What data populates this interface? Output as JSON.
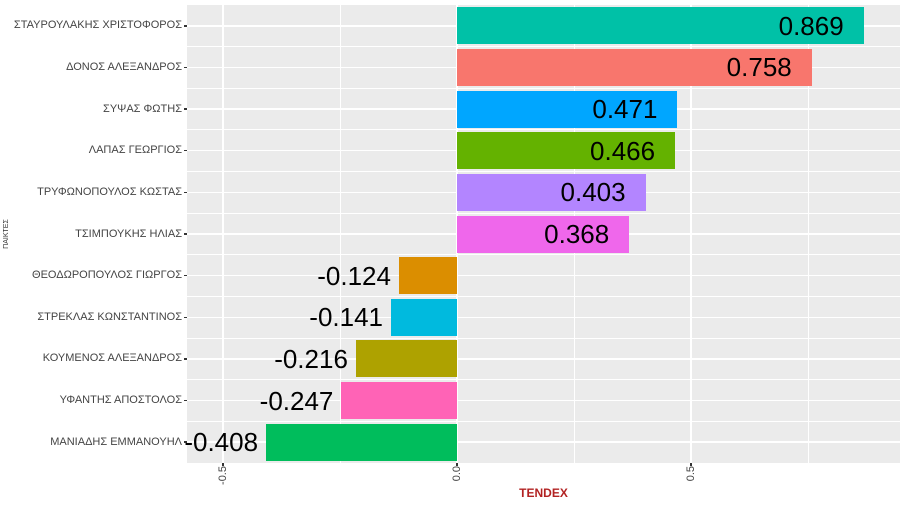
{
  "chart_data": {
    "type": "bar",
    "orientation": "horizontal",
    "title": "",
    "xlabel": "TENDEX",
    "ylabel": "ΠΑΙΚΤΕΣ",
    "legend_position": "none",
    "grid": true,
    "categories": [
      "ΣΤΑΥΡΟΥΛΑΚΗΣ ΧΡΙΣΤΟΦΟΡΟΣ",
      "ΔΟΝΟΣ ΑΛΕΞΑΝΔΡΟΣ",
      "ΣΥΨΑΣ ΦΩΤΗΣ",
      "ΛΑΠΑΣ ΓΕΩΡΓΙΟΣ",
      "ΤΡΥΦΩΝΟΠΟΥΛΟΣ ΚΩΣΤΑΣ",
      "ΤΣΙΜΠΟΥΚΗΣ ΗΛΙΑΣ",
      "ΘΕΟΔΩΡΟΠΟΥΛΟΣ ΓΙΩΡΓΟΣ",
      "ΣΤΡΕΚΛΑΣ ΚΩΝΣΤΑΝΤΙΝΟΣ",
      "ΚΟΥΜΕΝΟΣ ΑΛΕΞΑΝΔΡΟΣ",
      "ΥΦΑΝΤΗΣ ΑΠΟΣΤΟΛΟΣ",
      "ΜΑΝΙΑΔΗΣ ΕΜΜΑΝΟΥΗΛ"
    ],
    "values": [
      0.869,
      0.758,
      0.471,
      0.466,
      0.403,
      0.368,
      -0.124,
      -0.141,
      -0.216,
      -0.247,
      -0.408
    ],
    "value_labels": [
      "0.869",
      "0.758",
      "0.471",
      "0.466",
      "0.403",
      "0.368",
      "-0.124",
      "-0.141",
      "-0.216",
      "-0.247",
      "-0.408"
    ],
    "bar_colors": [
      "#00C1A7",
      "#F8766D",
      "#00A6FF",
      "#64B200",
      "#B385FF",
      "#EF67EB",
      "#DB8E00",
      "#00BADE",
      "#AEA200",
      "#FF63B6",
      "#00BD5C"
    ],
    "x_ticks": [
      {
        "value": -0.5,
        "label": "-0.5"
      },
      {
        "value": 0.0,
        "label": "0.0"
      },
      {
        "value": 0.5,
        "label": "0.5"
      }
    ],
    "x_minor_ticks": [
      -0.25,
      0.25,
      0.75
    ],
    "xlim": [
      -0.577,
      0.947
    ],
    "styles": {
      "panel_bg": "#EBEBEB",
      "outer_bg": "#FFFFFF",
      "grid_color": "#FFFFFF",
      "axis_text_color": "#444444",
      "tick_mark_color": "#333333",
      "value_label_color": "#000000",
      "x_title_color": "#B22222",
      "y_title_color": "#333333"
    }
  }
}
